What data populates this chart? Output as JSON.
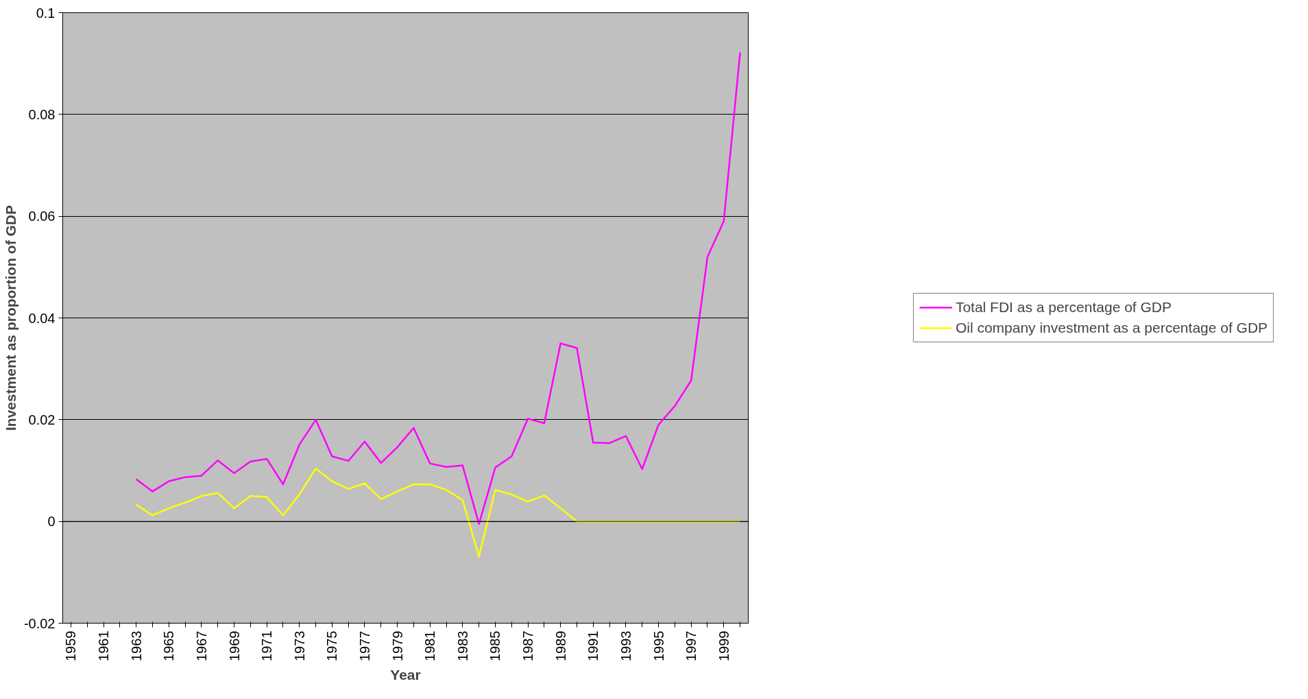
{
  "chart_data": {
    "type": "line",
    "xlabel": "Year",
    "ylabel": "Investment as proportion of GDP",
    "categories": [
      "1959",
      null,
      "1961",
      null,
      "1963",
      null,
      "1965",
      null,
      "1967",
      null,
      "1969",
      null,
      "1971",
      null,
      "1973",
      null,
      "1975",
      null,
      "1977",
      null,
      "1979",
      null,
      "1981",
      null,
      "1983",
      null,
      "1985",
      null,
      "1987",
      null,
      "1989",
      null,
      "1991",
      null,
      "1993",
      null,
      "1995",
      null,
      "1997",
      null,
      "1999",
      null
    ],
    "series": [
      {
        "name": "Total FDI as a percentage of GDP",
        "color": "#ff00ff",
        "values": [
          null,
          null,
          null,
          null,
          0.0083,
          0.0059,
          0.0079,
          0.0087,
          0.009,
          0.012,
          0.0095,
          0.0118,
          0.0123,
          0.0073,
          0.0151,
          0.02,
          0.0128,
          0.0119,
          0.0157,
          0.0115,
          0.0146,
          0.0184,
          0.0114,
          0.0107,
          0.011,
          -0.0005,
          0.0106,
          0.0128,
          0.0202,
          0.0193,
          0.035,
          0.0341,
          0.0155,
          0.0154,
          0.0168,
          0.0103,
          0.019,
          0.0227,
          0.0277,
          0.052,
          0.059,
          0.0922
        ]
      },
      {
        "name": "Oil company investment as a percentage of GDP",
        "color": "#ffff00",
        "values": [
          null,
          null,
          null,
          null,
          0.0033,
          0.0012,
          0.0026,
          0.0037,
          0.005,
          0.0056,
          0.0026,
          0.005,
          0.0048,
          0.0012,
          0.0053,
          0.0104,
          0.0079,
          0.0064,
          0.0075,
          0.0044,
          0.0059,
          0.0073,
          0.0073,
          0.0062,
          0.0042,
          -0.0069,
          0.0062,
          0.0053,
          0.0039,
          0.0051,
          0.0026,
          0,
          0,
          0,
          0,
          0,
          0,
          0,
          0,
          0,
          0,
          0
        ]
      }
    ],
    "ylim": [
      -0.02,
      0.1
    ],
    "yticks": [
      -0.02,
      0,
      0.02,
      0.04,
      0.06,
      0.08,
      0.1
    ],
    "grid": "y",
    "legend": "right",
    "marker": "none",
    "line_style": "solid"
  }
}
